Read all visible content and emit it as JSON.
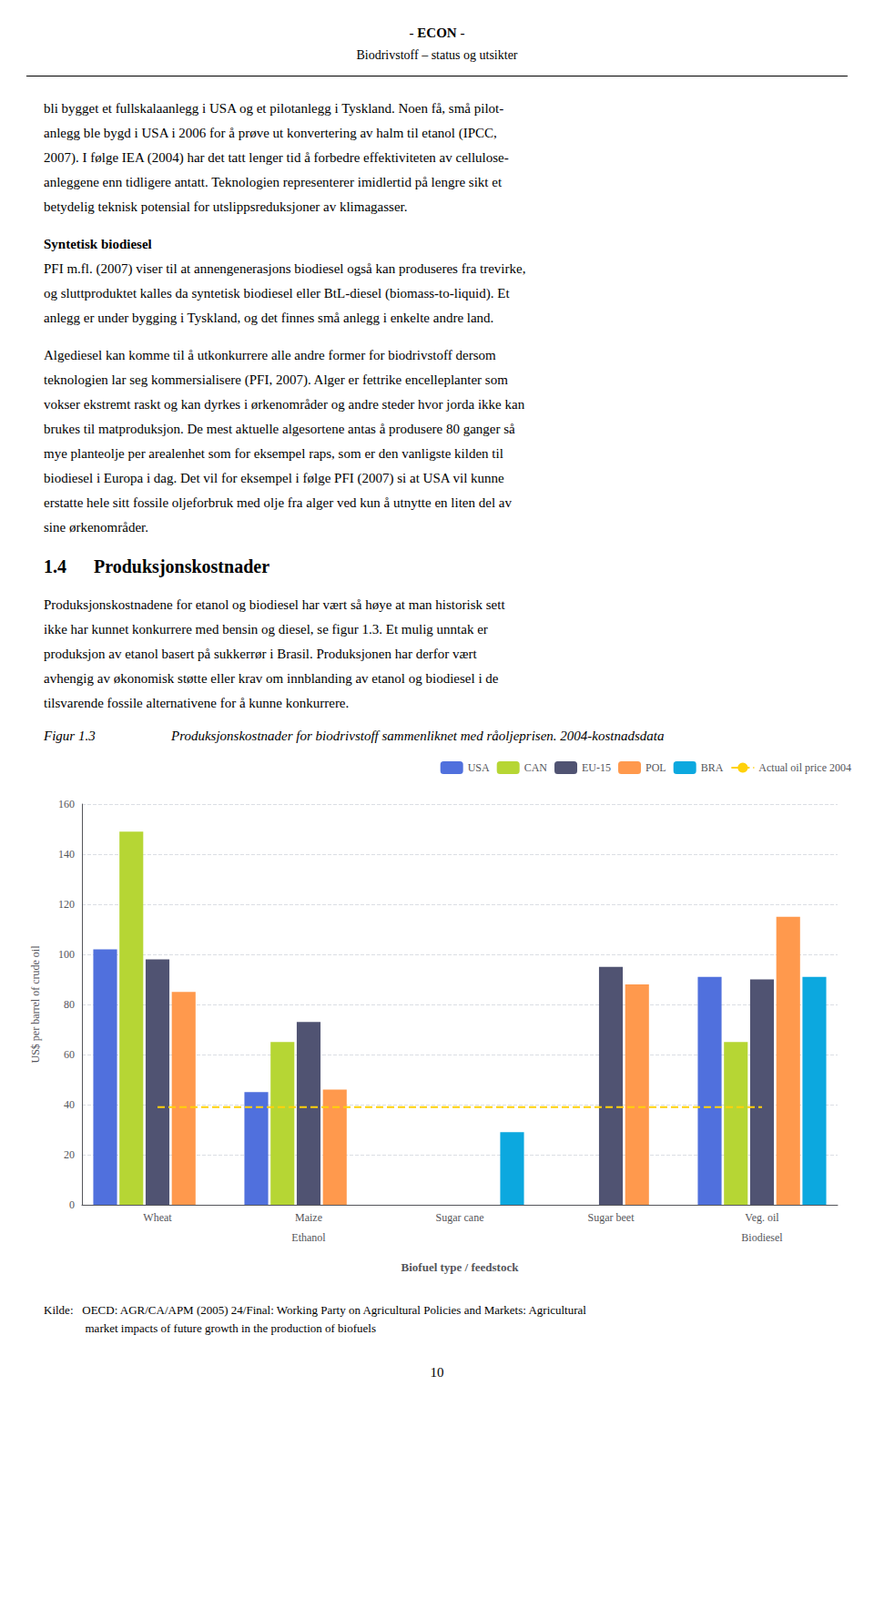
{
  "chart_data": {
    "type": "bar",
    "title": "Produksjonskostnader for biodrivstoff sammenliknet med råoljeprisen. 2004-kostnadsdata",
    "x_label": "Biofuel type / feedstock",
    "y_label": "US$ per barrel of crude oil",
    "categories": [
      "Wheat",
      "Maize",
      "Sugar cane",
      "Sugar beet",
      "Veg. oil"
    ],
    "series": [
      {
        "name": "USA",
        "values": [
          102,
          45,
          null,
          null,
          91
        ]
      },
      {
        "name": "CAN",
        "values": [
          149,
          65,
          null,
          null,
          65
        ]
      },
      {
        "name": "EU-15",
        "values": [
          98,
          73,
          null,
          95,
          90
        ]
      },
      {
        "name": "POL",
        "values": [
          85,
          46,
          null,
          88,
          115
        ]
      },
      {
        "name": "BRA",
        "values": [
          null,
          null,
          29,
          null,
          91
        ]
      },
      {
        "name": "Actual oil price 2004",
        "type": "line",
        "line_style": "dashed",
        "values": [
          39,
          39,
          39,
          39,
          39
        ]
      }
    ],
    "annotations": [
      {
        "text": "Ethanol",
        "x": "Maize"
      },
      {
        "text": "Biodiesel",
        "x": "Veg. oil"
      }
    ],
    "ylim": [
      0,
      160
    ],
    "yticks": [
      0,
      20,
      40,
      60,
      80,
      100,
      120,
      140,
      160
    ],
    "grid": true,
    "legend": "upper right"
  },
  "page": {
    "header": [
      "- ECON -",
      "Biodrivstoff – status og utsikter"
    ],
    "body": [
      {
        "lines": [
          "bli bygget et fullskalaanlegg i USA og et pilotanlegg i Tyskland. Noen få, små pilot-",
          "anlegg ble bygd i USA i 2006 for å prøve ut konvertering av halm til etanol (IPCC,",
          "2007). I følge IEA (2004) har det tatt lenger tid å forbedre effektiviteten av cellulose-",
          "anleggene enn tidligere antatt. Teknologien representerer imidlertid på lengre sikt et",
          "betydelig teknisk potensial for utslippsreduksjoner av klimagasser."
        ]
      },
      {
        "heading": "Syntetisk biodiesel"
      },
      {
        "lines": [
          "PFI m.fl. (2007) viser til at annengenerasjons biodiesel også kan produseres fra trevirke,",
          "og sluttproduktet kalles da syntetisk biodiesel eller BtL-diesel (biomass-to-liquid). Et",
          "anlegg er under bygging i Tyskland, og det finnes små anlegg i enkelte andre land."
        ]
      },
      {
        "lines": [
          "Algediesel kan komme til å utkonkurrere alle andre former for biodrivstoff dersom",
          "teknologien lar seg kommersialisere (PFI, 2007). Alger er fettrike encelleplanter som",
          "vokser ekstremt raskt og kan dyrkes i ørkenområder og andre steder hvor jorda ikke kan",
          "brukes til matproduksjon. De mest aktuelle algesortene antas å produsere 80 ganger så",
          "mye planteolje per arealenhet som for eksempel raps, som er den vanligste kilden til",
          "biodiesel i Europa i dag. Det vil for eksempel i følge PFI (2007) si at USA vil kunne",
          "erstatte hele sitt fossile oljeforbruk med olje fra alger ved kun å utnytte en liten del av",
          "sine ørkenområder."
        ]
      },
      {
        "section": "1.4      Produksjonskostnader"
      },
      {
        "lines": [
          "Produksjonskostnadene for etanol og biodiesel har vært så høye at man historisk sett",
          "ikke har kunnet konkurrere med bensin og diesel, se figur 1.3. Et mulig unntak er",
          "produksjon av etanol basert på sukkerrør i Brasil. Produksjonen har derfor vært",
          "avhengig av økonomisk støtte eller krav om innblanding av etanol og biodiesel i de",
          "tilsvarende fossile alternativene for å kunne konkurrere."
        ]
      }
    ],
    "figure_label": "Figur 1.3",
    "source": [
      "Kilde:   OECD: AGR/CA/APM (2005) 24/Final: Working Party on Agricultural Policies and Markets: Agricultural",
      "              market impacts of future growth in the production of biofuels"
    ],
    "page_number": "10"
  }
}
